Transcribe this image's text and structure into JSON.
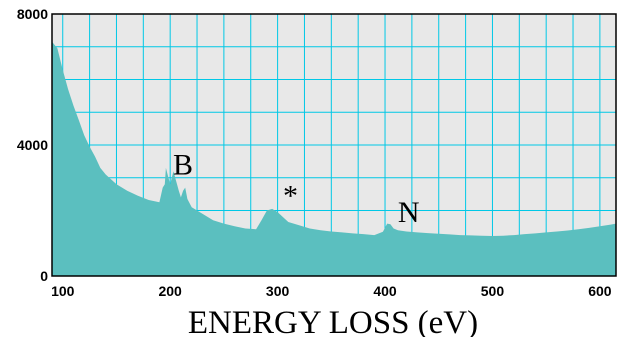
{
  "chart_data": {
    "type": "area",
    "title": "",
    "xlabel": "ENERGY LOSS (eV)",
    "ylabel": "",
    "xlim": [
      90,
      615
    ],
    "ylim": [
      0,
      8000
    ],
    "x_ticks": [
      "100",
      "200",
      "300",
      "400",
      "500",
      "600"
    ],
    "y_ticks": [
      "0",
      "4000",
      "8000"
    ],
    "grid": true,
    "colors": {
      "fill": "#5bbfbf",
      "plot_bg": "#e8e8e8",
      "grid": "#00c8e6",
      "frame": "#000000"
    },
    "annotations": [
      {
        "text": "B",
        "x": 212,
        "y": 3100
      },
      {
        "text": "*",
        "x": 312,
        "y": 2150
      },
      {
        "text": "N",
        "x": 422,
        "y": 1650
      }
    ],
    "series": [
      {
        "x": [
          90,
          95,
          100,
          105,
          110,
          115,
          120,
          125,
          130,
          135,
          140,
          145,
          150,
          160,
          170,
          180,
          190,
          193,
          195,
          196,
          198,
          200,
          203,
          206,
          208,
          210,
          212,
          214,
          216,
          220,
          230,
          240,
          250,
          260,
          270,
          280,
          285,
          290,
          295,
          300,
          305,
          310,
          320,
          330,
          340,
          350,
          360,
          370,
          380,
          390,
          398,
          402,
          405,
          408,
          412,
          420,
          430,
          440,
          450,
          460,
          470,
          480,
          490,
          500,
          510,
          520,
          530,
          540,
          550,
          560,
          570,
          580,
          590,
          600,
          610,
          615
        ],
        "values": [
          7150,
          6950,
          6300,
          5700,
          5200,
          4750,
          4300,
          3950,
          3650,
          3300,
          3100,
          2950,
          2800,
          2600,
          2450,
          2320,
          2250,
          2700,
          2800,
          3300,
          3050,
          2800,
          3200,
          2850,
          2600,
          2400,
          2600,
          2700,
          2350,
          2100,
          1900,
          1700,
          1600,
          1520,
          1450,
          1430,
          1700,
          2000,
          2050,
          1950,
          1800,
          1650,
          1550,
          1450,
          1400,
          1360,
          1330,
          1300,
          1280,
          1250,
          1350,
          1600,
          1580,
          1450,
          1400,
          1360,
          1330,
          1310,
          1290,
          1270,
          1250,
          1240,
          1230,
          1220,
          1230,
          1250,
          1280,
          1300,
          1330,
          1360,
          1390,
          1430,
          1470,
          1520,
          1570,
          1600
        ]
      }
    ]
  }
}
